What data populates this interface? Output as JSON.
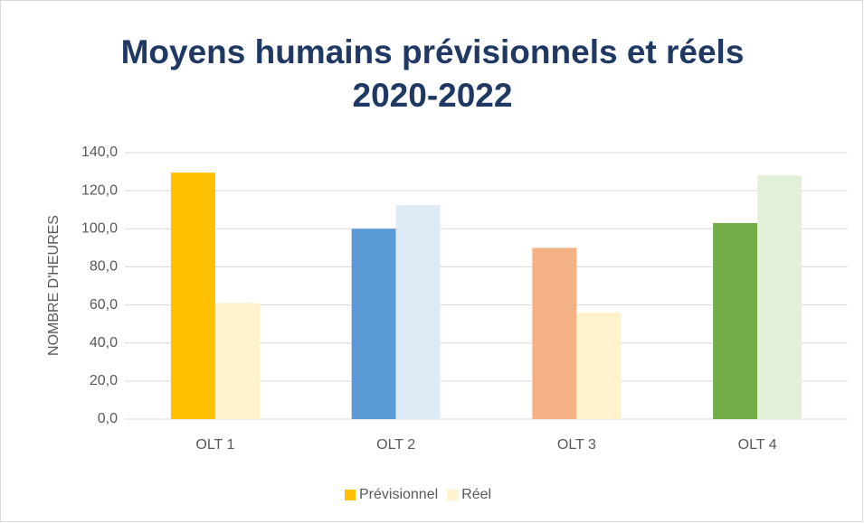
{
  "chart_data": {
    "type": "bar",
    "title": [
      "Moyens humains prévisionnels et réels",
      "2020-2022"
    ],
    "y_label": "NOMBRE D'HEURES",
    "categories": [
      "OLT 1",
      "OLT 2",
      "OLT 3",
      "OLT 4"
    ],
    "series": [
      {
        "name": "Prévisionnel",
        "color": "#ffc000",
        "colors": [
          "#ffc000",
          "#5b9bd5",
          "#f4b183",
          "#70ad47"
        ],
        "values": [
          129.5,
          100,
          90,
          103
        ]
      },
      {
        "name": "Réel",
        "color": "#fff2cc",
        "colors": [
          "#fff2cc",
          "#deebf7",
          "#fff2cc",
          "#e2f0d9"
        ],
        "values": [
          61,
          112.5,
          56,
          128
        ]
      }
    ],
    "ylim": [
      0,
      140
    ],
    "yticks": [
      {
        "value": 0,
        "label": "0,0"
      },
      {
        "value": 20,
        "label": "20,0"
      },
      {
        "value": 40,
        "label": "40,0"
      },
      {
        "value": 60,
        "label": "60,0"
      },
      {
        "value": 80,
        "label": "80,0"
      },
      {
        "value": 100,
        "label": "100,0"
      },
      {
        "value": 120,
        "label": "120,0"
      },
      {
        "value": 140,
        "label": "140,0"
      }
    ],
    "grid": true,
    "legend": "bottom"
  }
}
